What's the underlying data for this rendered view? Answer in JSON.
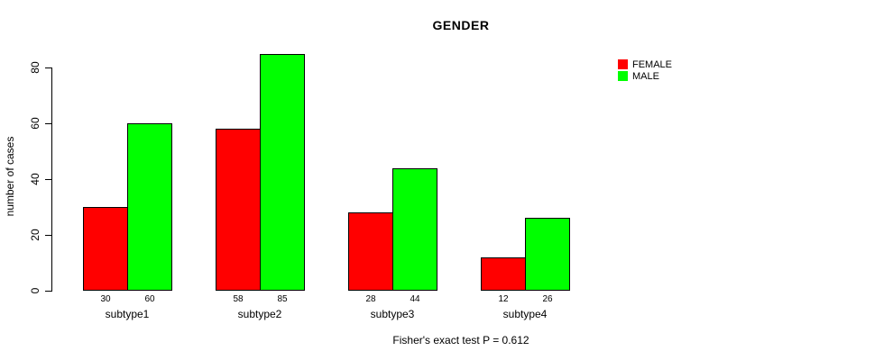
{
  "title": "GENDER",
  "annotation": "Fisher's exact test P = 0.612",
  "colors": {
    "female": "#FF0000",
    "male": "#00FF00",
    "axis": "#000000",
    "background": "#FFFFFF"
  },
  "legend": {
    "position": "top-right",
    "items": [
      {
        "label": "FEMALE",
        "color": "#FF0000"
      },
      {
        "label": "MALE",
        "color": "#00FF00"
      }
    ]
  },
  "chart_data": {
    "type": "bar",
    "title": "GENDER",
    "xlabel": "",
    "ylabel": "number of cases",
    "categories": [
      "subtype1",
      "subtype2",
      "subtype3",
      "subtype4"
    ],
    "series": [
      {
        "name": "FEMALE",
        "color": "#FF0000",
        "values": [
          30,
          58,
          28,
          12
        ]
      },
      {
        "name": "MALE",
        "color": "#00FF00",
        "values": [
          60,
          85,
          44,
          26
        ]
      }
    ],
    "bar_value_labels": [
      [
        30,
        60
      ],
      [
        58,
        85
      ],
      [
        28,
        44
      ],
      [
        12,
        26
      ]
    ],
    "yticks": [
      0,
      20,
      40,
      60,
      80
    ],
    "ylim": [
      0,
      85
    ],
    "grid": false,
    "legend_position": "top-right",
    "annotation": "Fisher's exact test P = 0.612"
  }
}
